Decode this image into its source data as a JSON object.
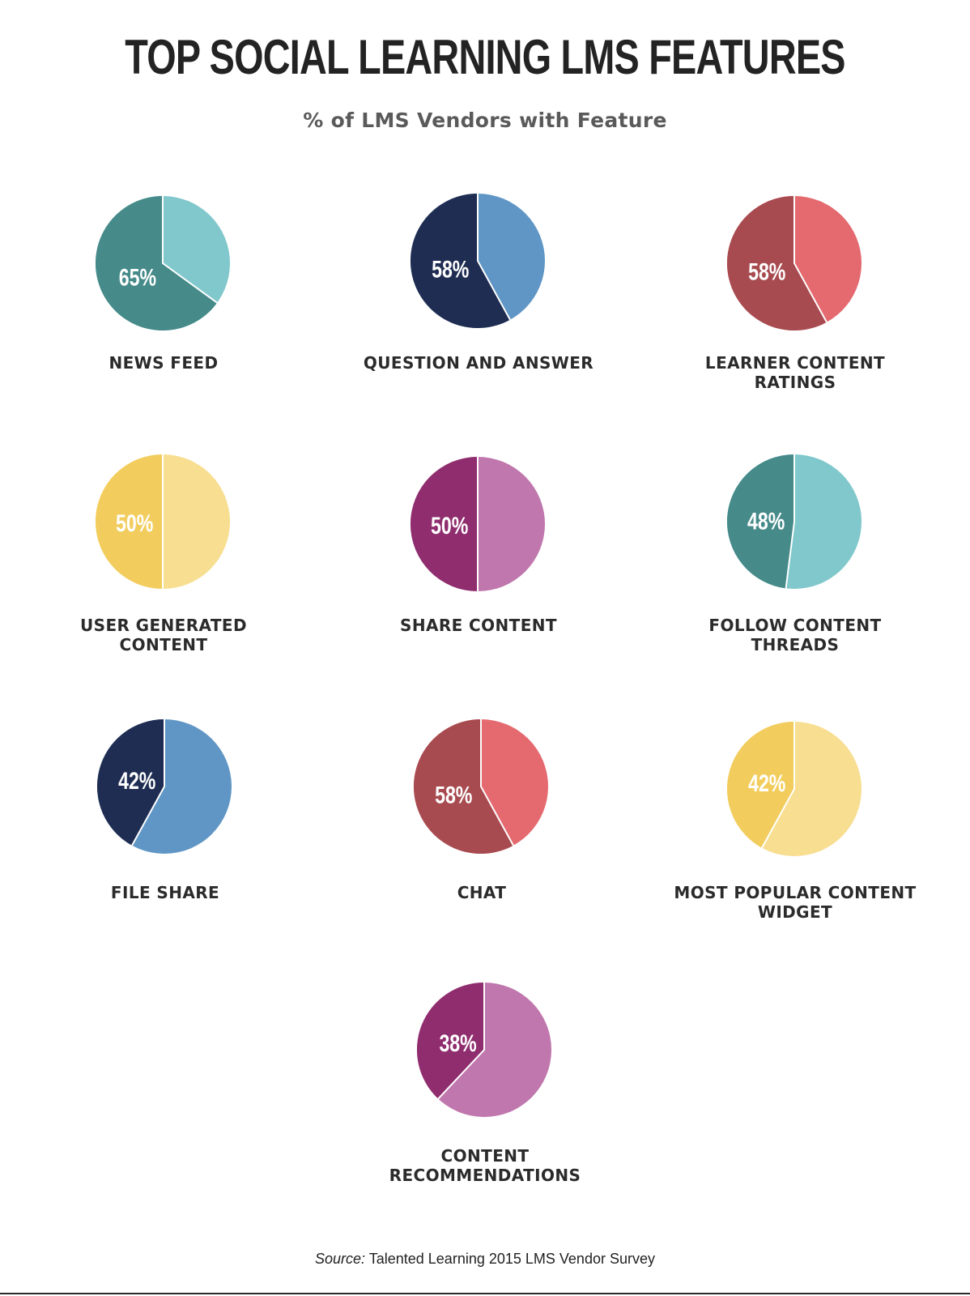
{
  "chart_data": {
    "type": "pie",
    "title": "TOP SOCIAL LEARNING LMS FEATURES",
    "subtitle": "% of LMS Vendors with Feature",
    "source_label": "Source:",
    "source_text": "Talented Learning 2015 LMS Vendor Survey",
    "pies": [
      {
        "label": "NEWS FEED",
        "value": 65,
        "percent_label": "65%",
        "colors": {
          "primary": "#468a8a",
          "secondary": "#80c8cc"
        }
      },
      {
        "label": "QUESTION AND ANSWER",
        "value": 58,
        "percent_label": "58%",
        "colors": {
          "primary": "#1f2d52",
          "secondary": "#6096c5"
        }
      },
      {
        "label": "LEARNER CONTENT RATINGS",
        "value": 58,
        "percent_label": "58%",
        "colors": {
          "primary": "#a84b50",
          "secondary": "#e46a70"
        }
      },
      {
        "label": "USER GENERATED CONTENT",
        "value": 50,
        "percent_label": "50%",
        "colors": {
          "primary": "#f2cd5e",
          "secondary": "#f7de90"
        }
      },
      {
        "label": "SHARE CONTENT",
        "value": 50,
        "percent_label": "50%",
        "colors": {
          "primary": "#8f2d6e",
          "secondary": "#c077ad"
        }
      },
      {
        "label": "FOLLOW CONTENT THREADS",
        "value": 48,
        "percent_label": "48%",
        "colors": {
          "primary": "#468a8a",
          "secondary": "#80c8cc"
        }
      },
      {
        "label": "FILE SHARE",
        "value": 42,
        "percent_label": "42%",
        "colors": {
          "primary": "#1f2d52",
          "secondary": "#6096c5"
        }
      },
      {
        "label": "CHAT",
        "value": 58,
        "percent_label": "58%",
        "colors": {
          "primary": "#a84b50",
          "secondary": "#e46a70"
        }
      },
      {
        "label": "MOST POPULAR CONTENT WIDGET",
        "value": 42,
        "percent_label": "42%",
        "colors": {
          "primary": "#f2cd5e",
          "secondary": "#f7de90"
        }
      },
      {
        "label": "CONTENT RECOMMENDATIONS",
        "value": 38,
        "percent_label": "38%",
        "colors": {
          "primary": "#8f2d6e",
          "secondary": "#c077ad"
        }
      }
    ]
  }
}
